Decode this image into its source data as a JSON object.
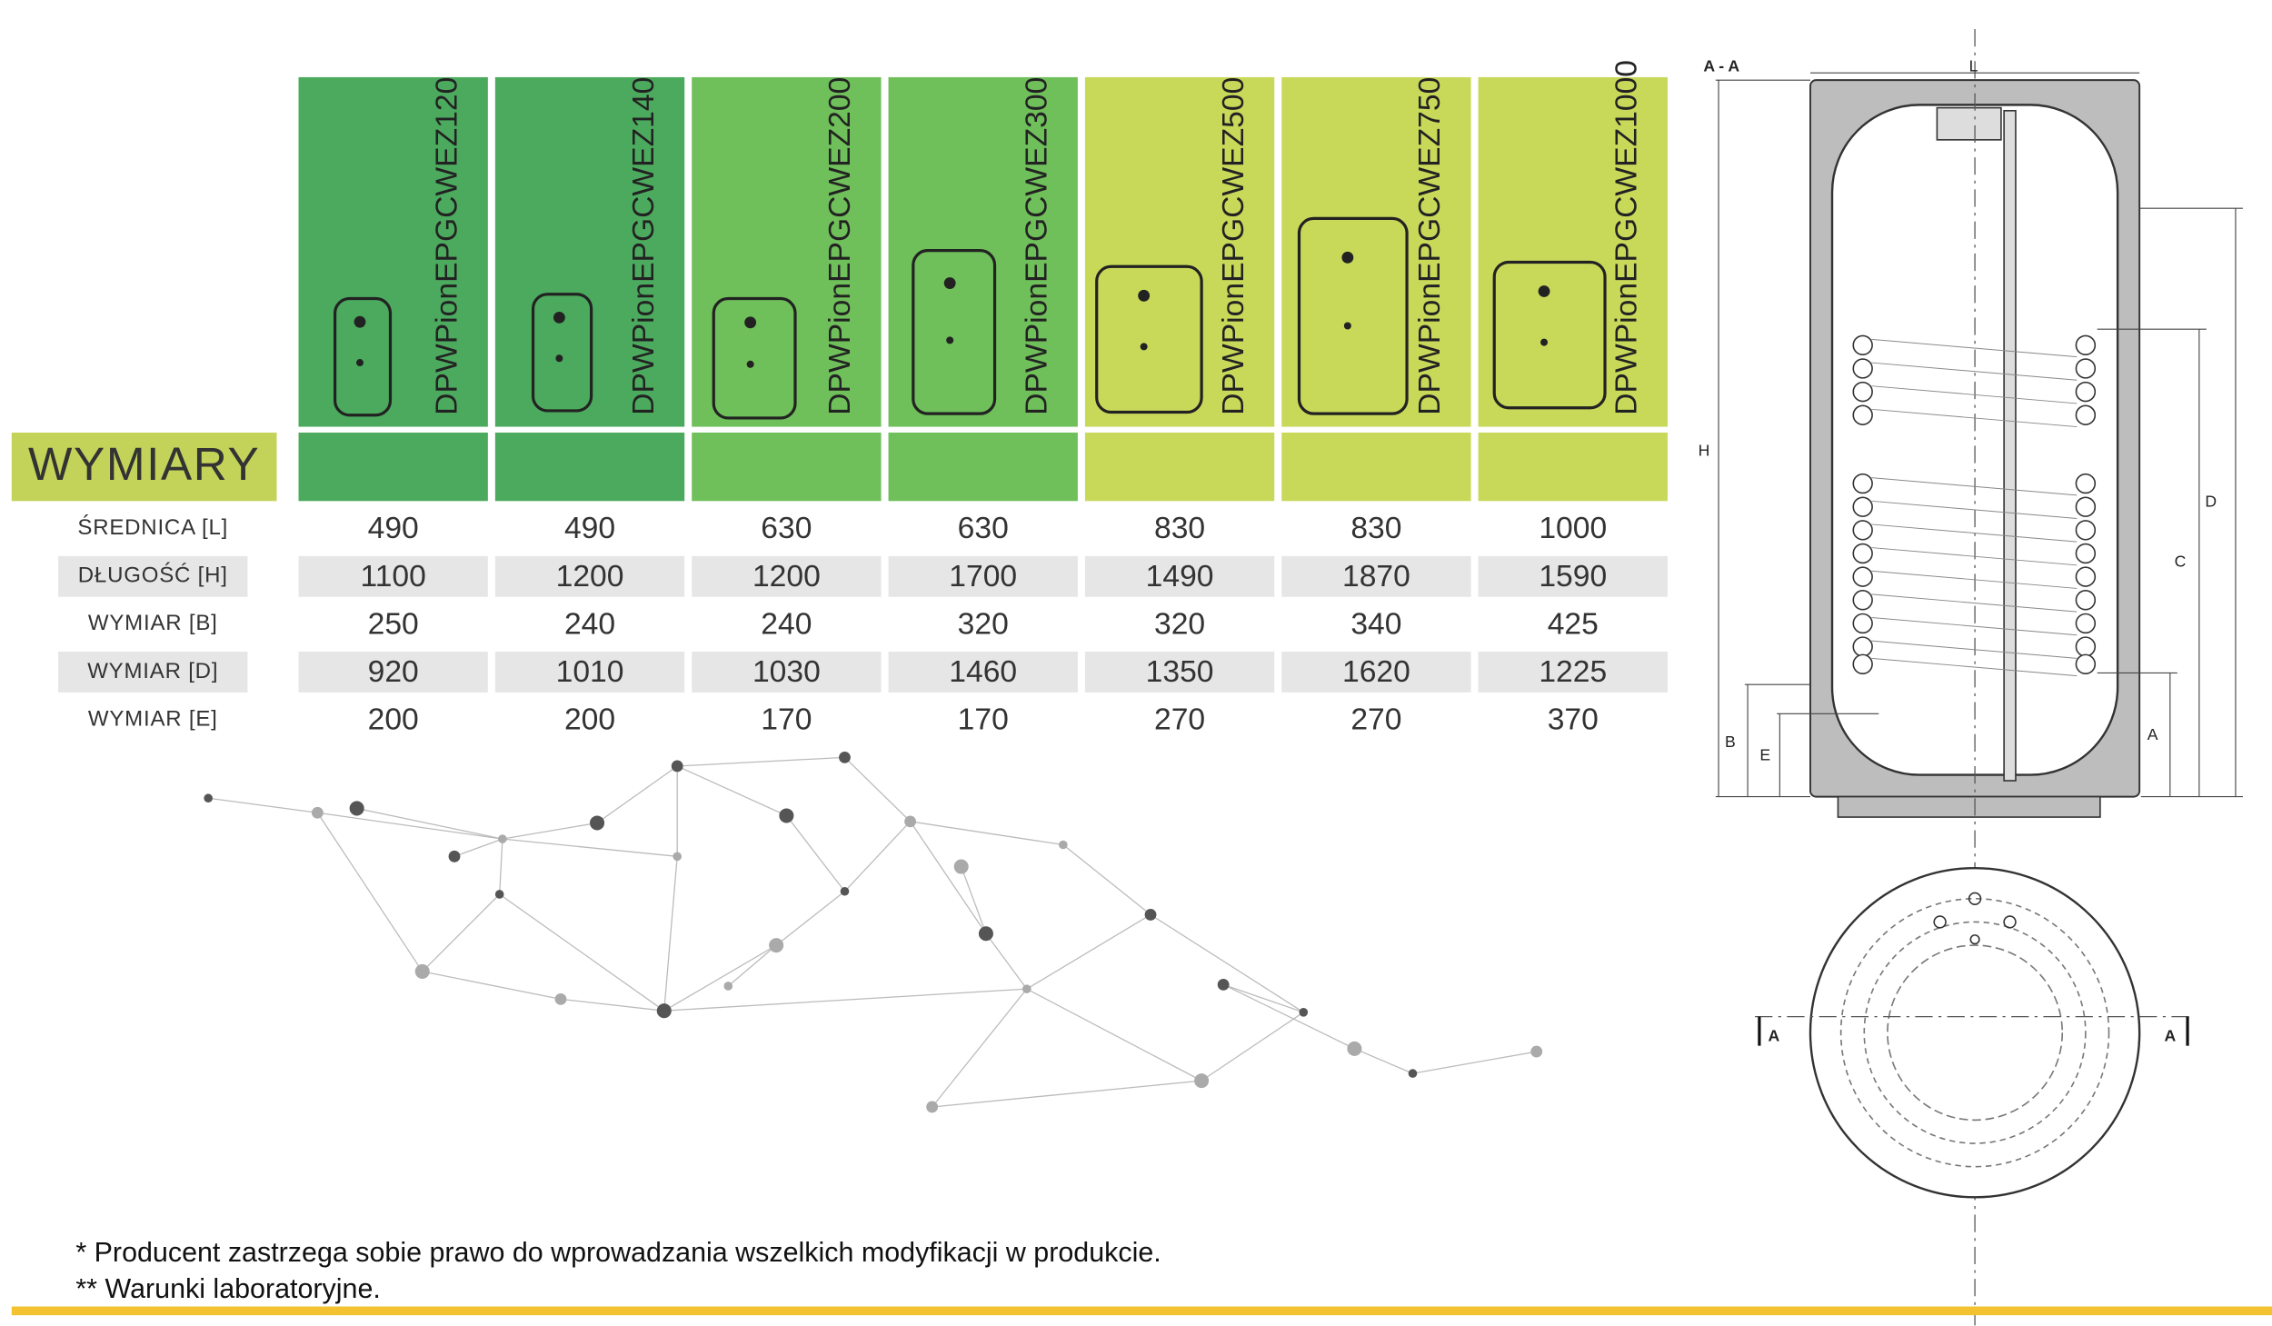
{
  "header": {
    "title": "WYMIARY"
  },
  "models": [
    "DPWPionEPGCWEZ120",
    "DPWPionEPGCWEZ140",
    "DPWPionEPGCWEZ200",
    "DPWPionEPGCWEZ300",
    "DPWPionEPGCWEZ500",
    "DPWPionEPGCWEZ750",
    "DPWPionEPGCWEZ1000"
  ],
  "table": {
    "rows": [
      {
        "label": "ŚREDNICA [L]",
        "values": [
          "490",
          "490",
          "630",
          "630",
          "830",
          "830",
          "1000"
        ]
      },
      {
        "label": "DŁUGOŚĆ [H]",
        "values": [
          "1100",
          "1200",
          "1200",
          "1700",
          "1490",
          "1870",
          "1590"
        ]
      },
      {
        "label": "WYMIAR [B]",
        "values": [
          "250",
          "240",
          "240",
          "320",
          "320",
          "340",
          "425"
        ]
      },
      {
        "label": "WYMIAR [D]",
        "values": [
          "920",
          "1010",
          "1030",
          "1460",
          "1350",
          "1620",
          "1225"
        ]
      },
      {
        "label": "WYMIAR [E]",
        "values": [
          "200",
          "200",
          "170",
          "170",
          "270",
          "270",
          "370"
        ]
      }
    ]
  },
  "diagram": {
    "labels": [
      "A - A",
      "L",
      "H",
      "D",
      "C",
      "B",
      "E",
      "A",
      "A",
      "A"
    ]
  },
  "footnotes": [
    "* Producent zastrzega sobie prawo do wprowadzania wszelkich modyfikacji w produkcie.",
    "** Warunki laboratoryjne."
  ]
}
